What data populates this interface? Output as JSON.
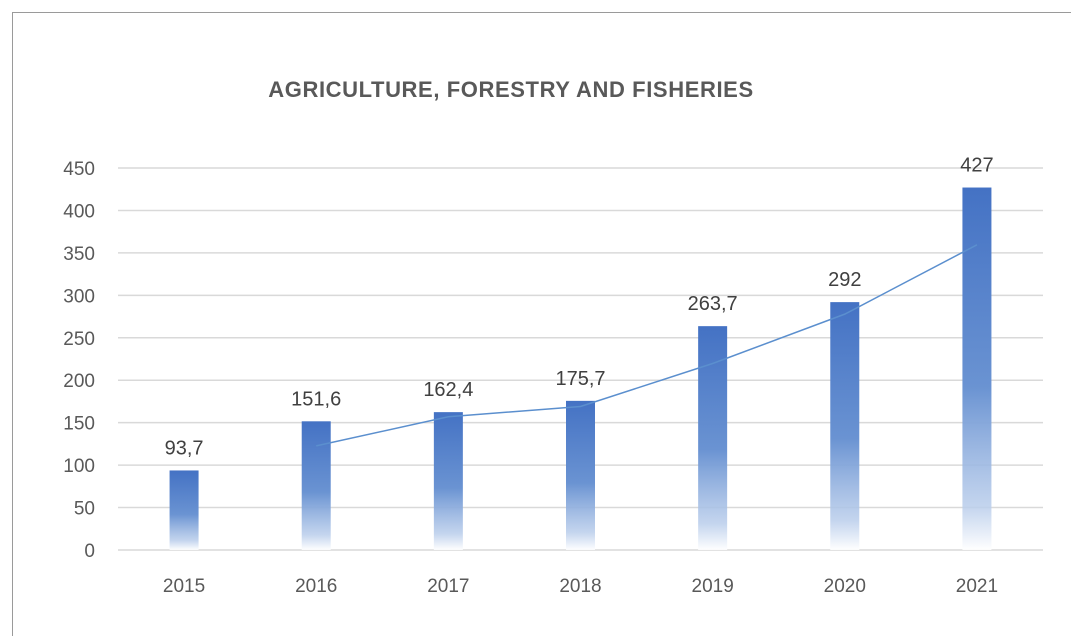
{
  "chart_data": {
    "type": "bar",
    "title": "AGRICULTURE, FORESTRY AND FISHERIES",
    "categories": [
      "2015",
      "2016",
      "2017",
      "2018",
      "2019",
      "2020",
      "2021"
    ],
    "values": [
      93.7,
      151.6,
      162.4,
      175.7,
      263.7,
      292,
      427
    ],
    "data_labels": [
      "93,7",
      "151,6",
      "162,4",
      "175,7",
      "263,7",
      "292",
      "427"
    ],
    "trendline": {
      "type": "moving-average",
      "period": 2,
      "color": "#5b8fce"
    },
    "ylim": [
      0,
      450
    ],
    "yticks": [
      0,
      50,
      100,
      150,
      200,
      250,
      300,
      350,
      400,
      450
    ],
    "grid": true,
    "legend": "none",
    "bar_color": "#4472c4",
    "xlabel": "",
    "ylabel": ""
  }
}
